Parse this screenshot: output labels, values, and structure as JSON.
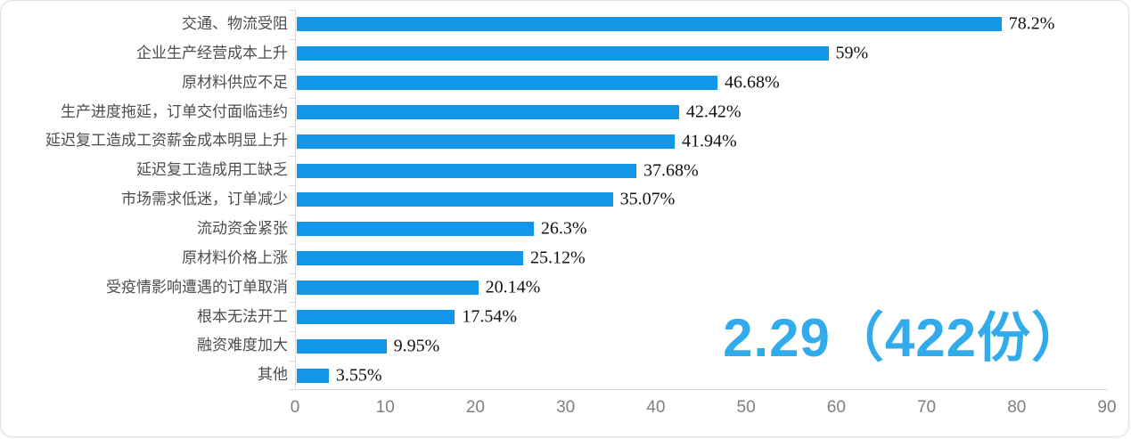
{
  "chart_data": {
    "type": "bar",
    "orientation": "horizontal",
    "title": "",
    "xlabel": "",
    "ylabel": "",
    "categories": [
      "交通、物流受阻",
      "企业生产经营成本上升",
      "原材料供应不足",
      "生产进度拖延，订单交付面临违约",
      "延迟复工造成工资薪金成本明显上升",
      "延迟复工造成用工缺乏",
      "市场需求低迷，订单减少",
      "流动资金紧张",
      "原材料价格上涨",
      "受疫情影响遭遇的订单取消",
      "根本无法开工",
      "融资难度加大",
      "其他"
    ],
    "values": [
      78.2,
      59,
      46.68,
      42.42,
      41.94,
      37.68,
      35.07,
      26.3,
      25.12,
      20.14,
      17.54,
      9.95,
      3.55
    ],
    "value_labels": [
      "78.2%",
      "59%",
      "46.68%",
      "42.42%",
      "41.94%",
      "37.68%",
      "35.07%",
      "26.3%",
      "25.12%",
      "20.14%",
      "17.54%",
      "9.95%",
      "3.55%"
    ],
    "xlim": [
      0,
      90
    ],
    "x_ticks": [
      "0",
      "10",
      "20",
      "30",
      "40",
      "50",
      "60",
      "70",
      "80",
      "90"
    ],
    "grid": false,
    "legend_position": "none",
    "bar_color": "#1296e8",
    "axis_color": "#d9d9d9",
    "category_label_color": "#4d4d4d",
    "value_label_color": "#111111",
    "tick_label_color": "#7f7f7f",
    "annotation": "2.29（422份）",
    "annotation_color": "#32abed"
  }
}
